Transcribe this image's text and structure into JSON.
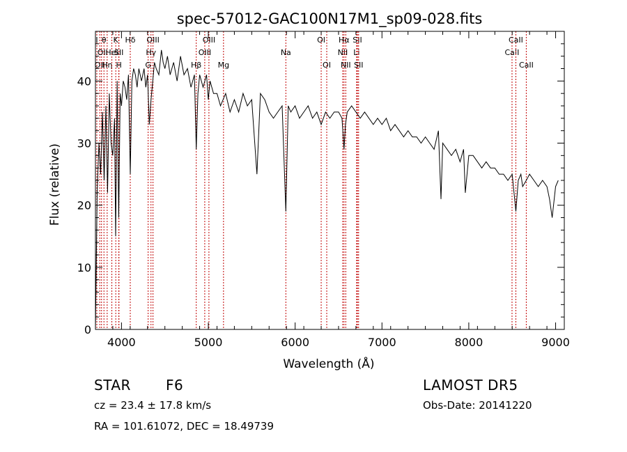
{
  "chart_data": {
    "type": "line",
    "title": "spec-57012-GAC100N17M1_sp09-028.fits",
    "xlabel": "Wavelength (Å)",
    "ylabel": "Flux (relative)",
    "xlim": [
      3700,
      9100
    ],
    "ylim": [
      0,
      48
    ],
    "xticks": [
      4000,
      5000,
      6000,
      7000,
      8000,
      9000
    ],
    "yticks": [
      0,
      10,
      20,
      30,
      40
    ],
    "grid": false,
    "line_color": "#000000",
    "marker_color": "#c00000",
    "series": [
      {
        "x": [
          3700,
          3720,
          3740,
          3760,
          3780,
          3800,
          3820,
          3840,
          3860,
          3880,
          3900,
          3920,
          3933,
          3950,
          3968,
          3985,
          4000,
          4020,
          4040,
          4060,
          4080,
          4101,
          4120,
          4140,
          4160,
          4180,
          4200,
          4230,
          4260,
          4280,
          4300,
          4320,
          4340,
          4360,
          4380,
          4400,
          4430,
          4460,
          4480,
          4500,
          4530,
          4560,
          4600,
          4640,
          4680,
          4720,
          4760,
          4800,
          4840,
          4861,
          4880,
          4900,
          4940,
          4980,
          5000,
          5020,
          5060,
          5100,
          5140,
          5170,
          5200,
          5250,
          5300,
          5350,
          5400,
          5450,
          5500,
          5560,
          5600,
          5650,
          5700,
          5750,
          5800,
          5850,
          5893,
          5920,
          5950,
          6000,
          6050,
          6100,
          6150,
          6200,
          6250,
          6300,
          6350,
          6400,
          6450,
          6500,
          6540,
          6563,
          6580,
          6600,
          6650,
          6700,
          6750,
          6800,
          6850,
          6900,
          6950,
          7000,
          7050,
          7100,
          7150,
          7200,
          7250,
          7300,
          7350,
          7400,
          7450,
          7500,
          7550,
          7600,
          7650,
          7680,
          7700,
          7750,
          7800,
          7850,
          7900,
          7940,
          7960,
          8000,
          8050,
          8100,
          8150,
          8200,
          8250,
          8300,
          8350,
          8400,
          8450,
          8500,
          8542,
          8570,
          8600,
          8620,
          8662,
          8700,
          8750,
          8800,
          8850,
          8900,
          8930,
          8960,
          9000,
          9030
        ],
        "y": [
          0,
          22,
          30,
          25,
          35,
          24,
          36,
          22,
          38,
          30,
          28,
          34,
          15,
          40,
          18,
          38,
          36,
          40,
          39,
          37,
          41,
          25,
          40,
          42,
          41,
          39,
          42,
          40,
          42,
          39,
          41,
          33,
          37,
          40,
          43,
          42,
          41,
          45,
          43,
          42,
          44,
          41,
          43,
          40,
          44,
          41,
          42,
          39,
          41,
          29,
          38,
          41,
          39,
          41,
          37,
          40,
          38,
          38,
          36,
          37,
          38,
          35,
          37,
          35,
          38,
          36,
          37,
          25,
          38,
          37,
          35,
          34,
          35,
          36,
          19,
          36,
          35,
          36,
          34,
          35,
          36,
          34,
          35,
          33,
          35,
          34,
          35,
          35,
          34,
          29,
          33,
          35,
          36,
          35,
          34,
          35,
          34,
          33,
          34,
          33,
          34,
          32,
          33,
          32,
          31,
          32,
          31,
          31,
          30,
          31,
          30,
          29,
          32,
          21,
          30,
          29,
          28,
          29,
          27,
          29,
          22,
          28,
          28,
          27,
          26,
          27,
          26,
          26,
          25,
          25,
          24,
          25,
          19,
          24,
          25,
          23,
          24,
          25,
          24,
          23,
          24,
          23,
          21,
          18,
          23,
          24
        ]
      }
    ],
    "line_markers": [
      {
        "x": 3716,
        "label": "I",
        "row": 0
      },
      {
        "x": 3750,
        "label": "OII",
        "row": 2
      },
      {
        "x": 3770,
        "label": "OI",
        "row": 1
      },
      {
        "x": 3798,
        "label": "θ",
        "row": 0
      },
      {
        "x": 3835,
        "label": "Hη",
        "row": 2
      },
      {
        "x": 3889,
        "label": "HeI",
        "row": 1
      },
      {
        "x": 3934,
        "label": "K",
        "row": 0
      },
      {
        "x": 3970,
        "label": "SII",
        "row": 1
      },
      {
        "x": 3970,
        "label": "H",
        "row": 2
      },
      {
        "x": 4101,
        "label": "Hδ",
        "row": 0
      },
      {
        "x": 4307,
        "label": "G",
        "row": 2
      },
      {
        "x": 4340,
        "label": "Hγ",
        "row": 1
      },
      {
        "x": 4363,
        "label": "OIII",
        "row": 0
      },
      {
        "x": 4861,
        "label": "Hβ",
        "row": 2
      },
      {
        "x": 4959,
        "label": "OIII",
        "row": 1
      },
      {
        "x": 5007,
        "label": "OIII",
        "row": 0
      },
      {
        "x": 5175,
        "label": "Mg",
        "row": 2
      },
      {
        "x": 5893,
        "label": "Na",
        "row": 1
      },
      {
        "x": 6300,
        "label": "OI",
        "row": 0
      },
      {
        "x": 6364,
        "label": "OI",
        "row": 2
      },
      {
        "x": 6548,
        "label": "NII",
        "row": 1
      },
      {
        "x": 6563,
        "label": "Hα",
        "row": 0
      },
      {
        "x": 6583,
        "label": "NII",
        "row": 2
      },
      {
        "x": 6708,
        "label": "Li",
        "row": 1
      },
      {
        "x": 6717,
        "label": "SII",
        "row": 0
      },
      {
        "x": 6731,
        "label": "SII",
        "row": 2
      },
      {
        "x": 8498,
        "label": "CaII",
        "row": 1
      },
      {
        "x": 8542,
        "label": "CaII",
        "row": 0
      },
      {
        "x": 8662,
        "label": "CaII",
        "row": 2
      }
    ]
  },
  "info": {
    "class": "STAR",
    "subclass": "F6",
    "survey": "LAMOST DR5",
    "velocity": "cz = 23.4 ± 17.8 km/s",
    "obs_date": "Obs-Date: 20141220",
    "coords": "RA = 101.61072, DEC =  18.49739"
  }
}
